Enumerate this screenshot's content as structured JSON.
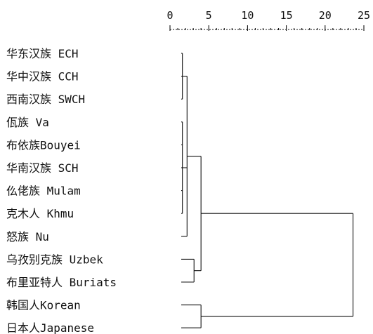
{
  "axis": {
    "ticks": [
      "0",
      "5",
      "10",
      "15",
      "20",
      "25"
    ],
    "range": [
      0,
      25
    ]
  },
  "leaves": [
    "华东汉族 ECH",
    "华中汉族 CCH",
    "西南汉族 SWCH",
    "佤族 Va",
    "布依族Bouyei",
    "华南汉族 SCH",
    "仫佬族 Mulam",
    "克木人 Khmu",
    "怒族 Nu",
    "乌孜别克族 Uzbek",
    "布里亚特人 Buriats",
    "韩国人Korean",
    "日本人Japanese"
  ],
  "merges": [
    {
      "id": "A",
      "children": [
        "L0",
        "L1",
        "L2"
      ],
      "height": 1.6
    },
    {
      "id": "B",
      "children": [
        "L3",
        "L4",
        "L5",
        "L6",
        "L7"
      ],
      "height": 1.6
    },
    {
      "id": "C",
      "children": [
        "A",
        "B",
        "L8"
      ],
      "height": 2.2
    },
    {
      "id": "D",
      "children": [
        "L9",
        "L10"
      ],
      "height": 3.1
    },
    {
      "id": "E",
      "children": [
        "C",
        "D"
      ],
      "height": 4.0
    },
    {
      "id": "F",
      "children": [
        "L11",
        "L12"
      ],
      "height": 4.0
    },
    {
      "id": "G",
      "children": [
        "E",
        "F"
      ],
      "height": 23.6
    }
  ],
  "colors": {
    "ink": "#111111",
    "background": "#ffffff"
  }
}
